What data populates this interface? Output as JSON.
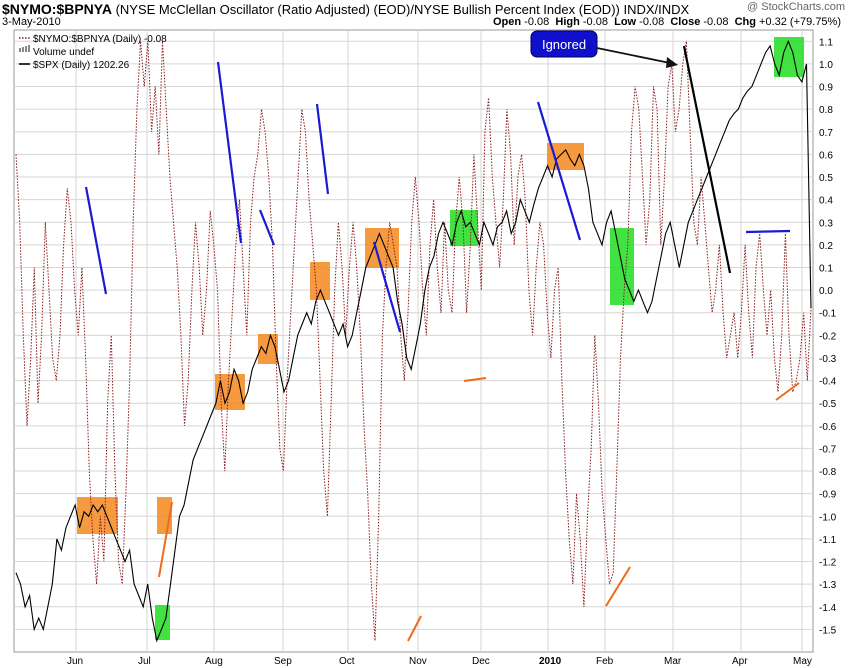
{
  "header": {
    "symbol": "$NYMO:$BPNYA",
    "description": "(NYSE McClellan Oscillator (Ratio Adjusted) (EOD)/NYSE Bullish Percent Index (EOD))",
    "exchange": "INDX/INDX",
    "date": "3-May-2010",
    "brand": "@ StockCharts.com",
    "open_label": "Open",
    "open": "-0.08",
    "high_label": "High",
    "high": "-0.08",
    "low_label": "Low",
    "low": "-0.08",
    "close_label": "Close",
    "close": "-0.08",
    "chg_label": "Chg",
    "chg": "+0.32 (+79.75%)"
  },
  "legend": [
    {
      "label": "$NYMO:$BPNYA (Daily) -0.08",
      "color": "#8b1a1a",
      "style": "dotted"
    },
    {
      "label": "Volume undef",
      "color": "#888888",
      "style": "bars"
    },
    {
      "label": "$SPX (Daily) 1202.26",
      "color": "#000000",
      "style": "solid"
    }
  ],
  "annotation": {
    "callout": "Ignored",
    "callout_color": "#1010cc"
  },
  "colors": {
    "oscillator": "#8b1a1a",
    "spx": "#000000",
    "orange_box": "#f5881f",
    "green_box": "#22dd22",
    "blue_line": "#1a1ad6",
    "orange_line": "#f06a1a",
    "grid": "#d6d6d6"
  },
  "chart_data": {
    "type": "line",
    "y_axis_side": "right",
    "ylim": [
      -1.6,
      1.15
    ],
    "y_ticks": [
      "1.1",
      "1.0",
      "0.9",
      "0.8",
      "0.7",
      "0.6",
      "0.5",
      "0.4",
      "0.3",
      "0.2",
      "0.1",
      "0.0",
      "-0.1",
      "-0.2",
      "-0.3",
      "-0.4",
      "-0.5",
      "-0.6",
      "-0.7",
      "-0.8",
      "-0.9",
      "-1.0",
      "-1.1",
      "-1.2",
      "-1.3",
      "-1.4",
      "-1.5"
    ],
    "x_ticks": [
      "Jun",
      "Jul",
      "Aug",
      "Sep",
      "Oct",
      "Nov",
      "Dec",
      "2010",
      "Feb",
      "Mar",
      "Apr",
      "May"
    ],
    "grid": true,
    "series": [
      {
        "name": "$NYMO:$BPNYA (Daily) -0.08",
        "style": "dotted",
        "values": [
          0.6,
          0.3,
          -0.2,
          -0.6,
          -0.3,
          0.1,
          -0.5,
          -0.2,
          0.3,
          0.0,
          -0.3,
          -0.4,
          -0.2,
          0.2,
          0.45,
          0.3,
          0.0,
          -0.2,
          0.1,
          -0.3,
          -0.8,
          -1.1,
          -1.3,
          -1.0,
          -1.2,
          -0.5,
          -0.2,
          -0.8,
          -1.2,
          -1.3,
          -0.9,
          -0.4,
          0.3,
          0.8,
          1.1,
          0.9,
          1.1,
          0.7,
          0.9,
          0.6,
          1.1,
          0.8,
          0.5,
          0.3,
          0.1,
          -0.2,
          -0.6,
          -0.4,
          0.0,
          0.3,
          0.1,
          -0.2,
          0.0,
          0.35,
          0.2,
          0.0,
          -0.5,
          -0.8,
          -0.4,
          -0.1,
          0.2,
          0.4,
          0.1,
          -0.2,
          0.3,
          0.5,
          0.6,
          0.8,
          0.7,
          0.5,
          0.2,
          -0.3,
          -0.7,
          -0.8,
          -0.4,
          -0.1,
          0.2,
          0.5,
          0.8,
          0.7,
          0.4,
          0.2,
          0.0,
          -0.4,
          -0.8,
          -1.0,
          -0.5,
          0.0,
          0.3,
          0.1,
          -0.2,
          0.1,
          0.3,
          0.1,
          -0.2,
          -0.6,
          -0.9,
          -1.3,
          -1.55,
          -1.0,
          -0.2,
          0.1,
          0.3,
          0.2,
          0.1,
          -0.2,
          -0.4,
          -0.1,
          0.3,
          0.5,
          0.3,
          0.0,
          -0.2,
          0.2,
          0.4,
          0.1,
          -0.1,
          0.3,
          0.0,
          -0.1,
          0.3,
          0.5,
          0.3,
          -0.1,
          0.2,
          0.6,
          0.3,
          0.0,
          0.7,
          0.85,
          0.5,
          0.3,
          0.1,
          0.4,
          0.8,
          0.6,
          0.2,
          0.5,
          0.6,
          0.4,
          0.0,
          -0.2,
          0.1,
          0.3,
          0.2,
          -0.1,
          -0.3,
          0.0,
          0.1,
          -0.4,
          -0.8,
          -1.1,
          -1.3,
          -0.9,
          -1.1,
          -1.4,
          -1.0,
          -0.7,
          -0.2,
          -0.5,
          -0.9,
          -1.1,
          -1.3,
          -1.25,
          -0.8,
          -0.3,
          0.0,
          0.2,
          0.7,
          0.9,
          0.8,
          0.5,
          0.2,
          0.4,
          0.9,
          0.8,
          0.2,
          0.5,
          0.9,
          1.0,
          0.7,
          0.8,
          1.0,
          1.1,
          0.7,
          0.3,
          0.2,
          0.5,
          0.3,
          0.1,
          -0.1,
          0.0,
          0.2,
          -0.1,
          -0.3,
          -0.2,
          -0.1,
          -0.3,
          -0.1,
          0.2,
          -0.1,
          -0.3,
          0.1,
          0.25,
          0.0,
          -0.2,
          0.0,
          -0.3,
          -0.45,
          -0.2,
          0.25,
          -0.2,
          -0.45,
          -0.4,
          -0.3,
          -0.1,
          -0.4,
          -0.08
        ]
      },
      {
        "name": "$SPX (Daily) 1202.26",
        "style": "solid",
        "values": [
          -1.25,
          -1.3,
          -1.4,
          -1.35,
          -1.5,
          -1.45,
          -1.5,
          -1.4,
          -1.3,
          -1.1,
          -1.15,
          -1.05,
          -1.0,
          -0.95,
          -1.05,
          -0.98,
          -1.0,
          -0.95,
          -0.98,
          -0.95,
          -1.0,
          -1.05,
          -1.1,
          -1.15,
          -1.2,
          -1.15,
          -1.3,
          -1.35,
          -1.4,
          -1.3,
          -1.45,
          -1.55,
          -1.5,
          -1.45,
          -1.3,
          -1.15,
          -1.0,
          -0.95,
          -0.85,
          -0.75,
          -0.7,
          -0.65,
          -0.6,
          -0.55,
          -0.5,
          -0.4,
          -0.5,
          -0.45,
          -0.35,
          -0.4,
          -0.5,
          -0.45,
          -0.35,
          -0.3,
          -0.25,
          -0.28,
          -0.2,
          -0.25,
          -0.35,
          -0.45,
          -0.4,
          -0.3,
          -0.2,
          -0.15,
          -0.1,
          -0.15,
          -0.05,
          0.0,
          -0.05,
          -0.1,
          -0.15,
          -0.2,
          -0.15,
          -0.25,
          -0.2,
          -0.1,
          0.0,
          0.1,
          0.15,
          0.2,
          0.25,
          0.2,
          0.15,
          0.1,
          -0.05,
          -0.15,
          -0.3,
          -0.35,
          -0.25,
          -0.15,
          0.0,
          0.1,
          0.15,
          0.25,
          0.3,
          0.25,
          0.2,
          0.3,
          0.35,
          0.28,
          0.3,
          0.25,
          0.2,
          0.3,
          0.25,
          0.2,
          0.28,
          0.3,
          0.35,
          0.25,
          0.3,
          0.4,
          0.35,
          0.3,
          0.38,
          0.45,
          0.5,
          0.55,
          0.5,
          0.58,
          0.6,
          0.62,
          0.58,
          0.55,
          0.6,
          0.55,
          0.45,
          0.3,
          0.25,
          0.2,
          0.3,
          0.35,
          0.25,
          0.15,
          0.05,
          0.0,
          -0.05,
          0.0,
          -0.05,
          -0.1,
          -0.05,
          0.05,
          0.15,
          0.25,
          0.3,
          0.2,
          0.1,
          0.2,
          0.3,
          0.35,
          0.4,
          0.45,
          0.5,
          0.55,
          0.6,
          0.65,
          0.7,
          0.75,
          0.78,
          0.8,
          0.85,
          0.88,
          0.9,
          0.95,
          1.0,
          1.05,
          1.08,
          1.0,
          0.95,
          1.05,
          1.1,
          1.05,
          0.95,
          0.92,
          1.0,
          -0.08
        ]
      }
    ]
  }
}
